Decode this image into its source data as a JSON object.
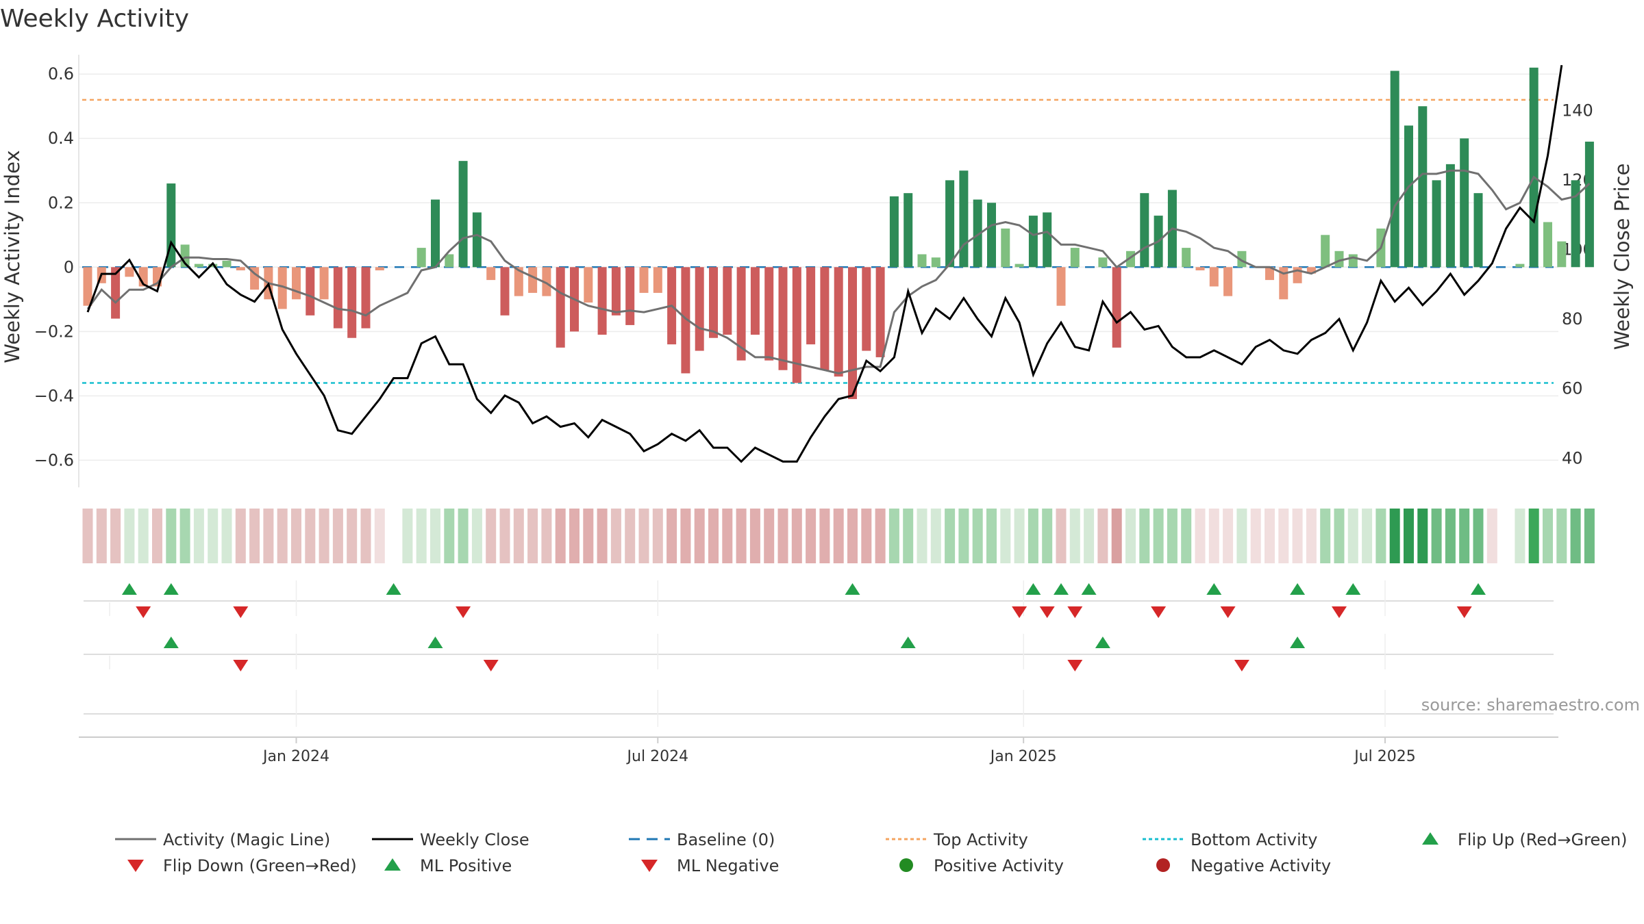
{
  "chart_data": {
    "type": "bar",
    "title": "Weekly Activity",
    "ylabel_left": "Weekly Activity Index",
    "ylabel_right": "Weekly Close Price",
    "ylim_left": [
      -0.68,
      0.66
    ],
    "ylim_right": [
      32,
      156
    ],
    "y_ticks_left": [
      {
        "v": 0.6,
        "label": "0.6"
      },
      {
        "v": 0.4,
        "label": "0.4"
      },
      {
        "v": 0.2,
        "label": "0.2"
      },
      {
        "v": 0,
        "label": "0"
      },
      {
        "v": -0.2,
        "label": "−0.2"
      },
      {
        "v": -0.4,
        "label": "−0.4"
      },
      {
        "v": -0.6,
        "label": "−0.6"
      }
    ],
    "y_ticks_right": [
      {
        "v": 140,
        "label": "140"
      },
      {
        "v": 120,
        "label": "120"
      },
      {
        "v": 100,
        "label": "100"
      },
      {
        "v": 80,
        "label": "80"
      },
      {
        "v": 60,
        "label": "60"
      },
      {
        "v": 40,
        "label": "40"
      }
    ],
    "x_ticks": [
      {
        "week": 15,
        "label": "Jan 2024"
      },
      {
        "week": 41,
        "label": "Jul 2024"
      },
      {
        "week": 67.3,
        "label": "Jan 2025"
      },
      {
        "week": 93.3,
        "label": "Jul 2025"
      }
    ],
    "top_activity": 0.52,
    "bottom_activity": -0.36,
    "baseline": 0,
    "activity": [
      -0.12,
      -0.05,
      -0.16,
      -0.03,
      -0.06,
      -0.06,
      0.26,
      0.07,
      0.01,
      0.01,
      0.02,
      -0.01,
      -0.07,
      -0.1,
      -0.13,
      -0.1,
      -0.15,
      -0.1,
      -0.19,
      -0.22,
      -0.19,
      -0.01,
      0.0,
      0.0,
      0.06,
      0.21,
      0.04,
      0.33,
      0.17,
      -0.04,
      -0.15,
      -0.09,
      -0.08,
      -0.09,
      -0.25,
      -0.2,
      -0.11,
      -0.21,
      -0.15,
      -0.18,
      -0.08,
      -0.08,
      -0.24,
      -0.33,
      -0.26,
      -0.22,
      -0.21,
      -0.29,
      -0.21,
      -0.29,
      -0.32,
      -0.36,
      -0.24,
      -0.32,
      -0.34,
      -0.41,
      -0.26,
      -0.28,
      0.22,
      0.23,
      0.04,
      0.03,
      0.27,
      0.3,
      0.21,
      0.2,
      0.12,
      0.01,
      0.16,
      0.17,
      -0.12,
      0.06,
      0.0,
      0.03,
      -0.25,
      0.05,
      0.23,
      0.16,
      0.24,
      0.06,
      -0.01,
      -0.06,
      -0.09,
      0.05,
      0.0,
      -0.04,
      -0.1,
      -0.05,
      -0.02,
      0.1,
      0.05,
      0.04,
      0.0,
      0.12,
      0.61,
      0.44,
      0.5,
      0.27,
      0.32,
      0.4,
      0.23,
      0.0,
      0.0,
      0.01,
      0.62,
      0.14,
      0.08,
      0.27,
      0.39
    ],
    "magic_line": [
      -0.13,
      -0.07,
      -0.11,
      -0.07,
      -0.07,
      -0.05,
      0.0,
      0.03,
      0.03,
      0.025,
      0.025,
      0.02,
      -0.02,
      -0.05,
      -0.06,
      -0.075,
      -0.09,
      -0.11,
      -0.13,
      -0.135,
      -0.15,
      -0.12,
      -0.1,
      -0.08,
      -0.01,
      0.0,
      0.05,
      0.09,
      0.1,
      0.08,
      0.02,
      -0.01,
      -0.03,
      -0.05,
      -0.08,
      -0.1,
      -0.12,
      -0.13,
      -0.14,
      -0.135,
      -0.14,
      -0.13,
      -0.12,
      -0.16,
      -0.19,
      -0.2,
      -0.22,
      -0.25,
      -0.28,
      -0.28,
      -0.29,
      -0.3,
      -0.31,
      -0.32,
      -0.33,
      -0.32,
      -0.31,
      -0.31,
      -0.14,
      -0.09,
      -0.06,
      -0.04,
      0.01,
      0.07,
      0.1,
      0.13,
      0.14,
      0.13,
      0.1,
      0.11,
      0.07,
      0.07,
      0.06,
      0.05,
      0.0,
      0.03,
      0.06,
      0.08,
      0.12,
      0.11,
      0.09,
      0.06,
      0.05,
      0.02,
      0.0,
      0.0,
      -0.02,
      -0.01,
      -0.02,
      0.0,
      0.02,
      0.03,
      0.02,
      0.06,
      0.19,
      0.25,
      0.29,
      0.29,
      0.3,
      0.3,
      0.29,
      0.24,
      0.18,
      0.2,
      0.28,
      0.25,
      0.21,
      0.22,
      0.26
    ],
    "weekly_close": [
      82,
      93,
      93,
      97,
      90,
      88,
      102,
      96,
      92,
      96,
      90,
      87,
      85,
      90,
      77,
      70,
      64,
      58,
      48,
      47,
      52,
      57,
      63,
      63,
      73,
      75,
      67,
      67,
      57,
      53,
      58,
      56,
      50,
      52,
      49,
      50,
      46,
      51,
      49,
      47,
      42,
      44,
      47,
      45,
      48,
      43,
      43,
      39,
      43,
      41,
      39,
      39,
      46,
      52,
      57,
      58,
      68,
      65,
      69,
      88,
      76,
      83,
      80,
      86,
      80,
      75,
      86,
      79,
      64,
      73,
      79,
      72,
      71,
      85,
      79,
      82,
      77,
      78,
      72,
      69,
      69,
      71,
      69,
      67,
      72,
      74,
      71,
      70,
      74,
      76,
      80,
      71,
      79,
      91,
      85,
      89,
      84,
      88,
      93,
      87,
      91,
      96,
      106,
      112,
      108,
      127,
      153
    ],
    "strip_colors": [
      "#e5c2c1",
      "#e5c2c1",
      "#e5c2c1",
      "#d4e9d6",
      "#d4e9d6",
      "#e5c2c1",
      "#a7d7b0",
      "#a7d7b0",
      "#d4e9d6",
      "#d4e9d6",
      "#d4e9d6",
      "#e5c2c1",
      "#e5c2c1",
      "#e5c2c1",
      "#e5c2c1",
      "#e5c2c1",
      "#e5c2c1",
      "#e5c2c1",
      "#e5c2c1",
      "#e5c2c1",
      "#e5c2c1",
      "#f1dede",
      "#ffffff",
      "#d4e9d6",
      "#d4e9d6",
      "#d4e9d6",
      "#a7d7b0",
      "#a7d7b0",
      "#d4e9d6",
      "#e5c2c1",
      "#e5c2c1",
      "#e5c2c1",
      "#e5c2c1",
      "#e5c2c1",
      "#e0aeae",
      "#e0aeae",
      "#e0aeae",
      "#e0aeae",
      "#e5c2c1",
      "#e5c2c1",
      "#e5c2c1",
      "#e5c2c1",
      "#e0aeae",
      "#e0aeae",
      "#e0aeae",
      "#e0aeae",
      "#e0aeae",
      "#e0aeae",
      "#e0aeae",
      "#e0aeae",
      "#e0aeae",
      "#e0aeae",
      "#e0aeae",
      "#e0aeae",
      "#e0aeae",
      "#e0aeae",
      "#e0aeae",
      "#e0aeae",
      "#a7d7b0",
      "#a7d7b0",
      "#d4e9d6",
      "#d4e9d6",
      "#a7d7b0",
      "#a7d7b0",
      "#a7d7b0",
      "#a7d7b0",
      "#d4e9d6",
      "#d4e9d6",
      "#a7d7b0",
      "#a7d7b0",
      "#e5c2c1",
      "#d4e9d6",
      "#d4e9d6",
      "#e5c2c1",
      "#d9a0a0",
      "#d4e9d6",
      "#a7d7b0",
      "#a7d7b0",
      "#a7d7b0",
      "#a7d7b0",
      "#f1dede",
      "#f1dede",
      "#f1dede",
      "#d4e9d6",
      "#f1dede",
      "#f1dede",
      "#f1dede",
      "#f1dede",
      "#f1dede",
      "#a7d7b0",
      "#a7d7b0",
      "#d4e9d6",
      "#d4e9d6",
      "#a7d7b0",
      "#2e9a52",
      "#2e9a52",
      "#2e9a52",
      "#6fbc84",
      "#6fbc84",
      "#6fbc84",
      "#6fbc84",
      "#f1dede",
      "#ffffff",
      "#d4e9d6",
      "#3ca85a",
      "#a7d7b0",
      "#a7d7b0",
      "#6fbc84",
      "#6fbc84"
    ],
    "signal_row1_up": [
      3,
      6,
      22,
      55,
      68,
      70,
      72,
      81,
      87,
      91,
      100
    ],
    "signal_row1_down": [
      4,
      11,
      27,
      67,
      69,
      71,
      77,
      82,
      90,
      99
    ],
    "signal_row2_up": [
      6,
      25,
      59,
      73,
      87
    ],
    "signal_row2_down": [
      11,
      29,
      71,
      83
    ],
    "legend": [
      "Activity (Magic Line)",
      "Weekly Close",
      "Baseline (0)",
      "Top Activity",
      "Bottom Activity",
      "Flip Up (Red→Green)",
      "Flip Down (Green→Red)",
      "ML Positive",
      "ML Negative",
      "Positive Activity",
      "Negative Activity"
    ]
  },
  "source": "source: sharemaestro.com",
  "colors": {
    "bar_green_strong": "#2e8b57",
    "bar_green_light": "#7fbf7f",
    "bar_red_strong": "#cd5c5c",
    "bar_red_light": "#e9967a",
    "magic_line": "#707070",
    "close_line": "#000000",
    "baseline": "#1f77b4",
    "top_line": "#f4a460",
    "bottom_line": "#17becf",
    "marker_up": "#23a04a",
    "marker_down": "#d62728",
    "positive_dot": "#228b22",
    "negative_dot": "#b22222"
  }
}
